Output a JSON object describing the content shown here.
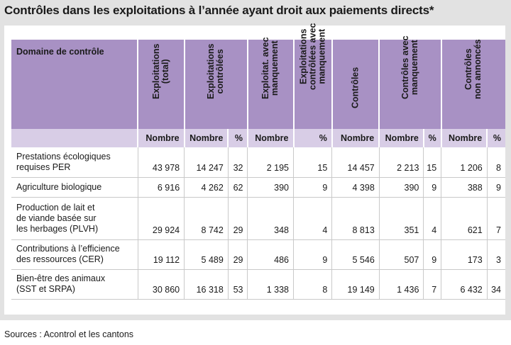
{
  "title": "Contrôles dans les exploitations à l’année ayant droit aux paiements directs*",
  "source": "Sources : Acontrol et les cantons",
  "header": {
    "domain": "Domaine de contrôle",
    "columns": [
      [
        "Exploitations",
        "(total)"
      ],
      [
        "Exploitations",
        "contrôlées"
      ],
      [
        "Exploitat. avec",
        "manquement"
      ],
      [
        "Exploitations",
        "contrôlées avec",
        "manquement"
      ],
      [
        "Contrôles"
      ],
      [
        "Contrôles avec",
        "manquement"
      ],
      [
        "Contrôles",
        "non annoncés"
      ]
    ],
    "sub": [
      "Nombre",
      "Nombre",
      "%",
      "Nombre",
      "%",
      "Nombre",
      "Nombre",
      "%",
      "Nombre",
      "%"
    ]
  },
  "rows": [
    {
      "label": [
        "Prestations écologiques",
        "requises PER"
      ],
      "values": [
        "43 978",
        "14 247",
        "32",
        "2 195",
        "15",
        "14 457",
        "2 213",
        "15",
        "1 206",
        "8"
      ]
    },
    {
      "label": [
        "Agriculture biologique"
      ],
      "values": [
        "6 916",
        "4 262",
        "62",
        "390",
        "9",
        "4 398",
        "390",
        "9",
        "388",
        "9"
      ]
    },
    {
      "label": [
        "Production de lait et",
        "de viande basée sur",
        "les herbages (PLVH)"
      ],
      "values": [
        "29 924",
        "8 742",
        "29",
        "348",
        "4",
        "8 813",
        "351",
        "4",
        "621",
        "7"
      ]
    },
    {
      "label": [
        "Contributions à l’efficience",
        "des ressources (CER)"
      ],
      "values": [
        "19 112",
        "5 489",
        "29",
        "486",
        "9",
        "5 546",
        "507",
        "9",
        "173",
        "3"
      ]
    },
    {
      "label": [
        "Bien-être des animaux",
        "(SST et SRPA)"
      ],
      "values": [
        "30 860",
        "16 318",
        "53",
        "1 338",
        "8",
        "19 149",
        "1 436",
        "7",
        "6 432",
        "34"
      ]
    }
  ]
}
